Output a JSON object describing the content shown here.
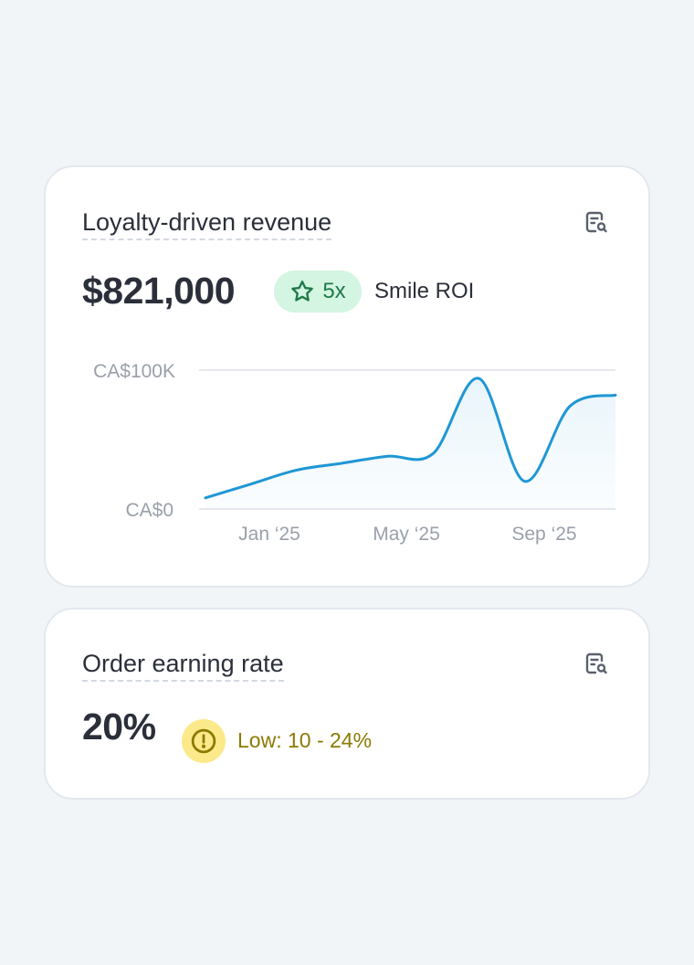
{
  "revenue_card": {
    "title": "Loyalty-driven revenue",
    "value": "$821,000",
    "roi_multiplier": "5x",
    "roi_label": "Smile ROI",
    "insight_icon": "document-search-icon",
    "badge_icon": "star-icon"
  },
  "rate_card": {
    "title": "Order earning rate",
    "value": "20%",
    "status_text": "Low: 10 - 24%",
    "insight_icon": "document-search-icon",
    "status_icon": "alert-circle-icon"
  },
  "colors": {
    "line": "#1f97d4",
    "roi_badge_bg": "#d3f5e1",
    "roi_badge_text": "#1f7a48",
    "warn_bg": "#fbe98a",
    "warn_text": "#8c7a00"
  },
  "chart_data": {
    "type": "area",
    "y_tick_labels": [
      "CA$100K",
      "CA$0"
    ],
    "x_tick_labels": [
      "Jan ‘25",
      "May ‘25",
      "Sep ‘25"
    ],
    "ylim": [
      0,
      100000
    ],
    "grid": true,
    "series": [
      {
        "values": [
          8000,
          18000,
          28000,
          33000,
          38000,
          40000,
          94000,
          20000,
          74000,
          82000
        ]
      }
    ]
  }
}
